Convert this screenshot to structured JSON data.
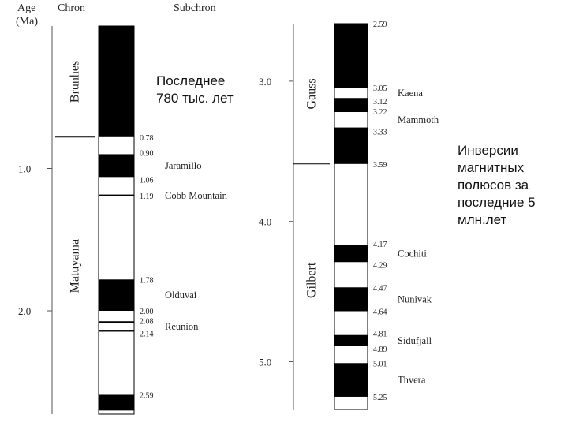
{
  "headers": {
    "age": "Age",
    "age_unit": "(Ma)",
    "chron": "Chron",
    "subchron": "Subchron"
  },
  "notes": {
    "last": "Последнее\n780 тыс. лет",
    "inversions": "Инверсии\nмагнитных\nполюсов за\nпоследние 5\nмлн.лет"
  },
  "chart_data": [
    {
      "type": "table",
      "age_axis": {
        "ticks": [
          1.0,
          2.0
        ],
        "tick_labels": [
          "1.0",
          "2.0"
        ],
        "range": [
          0.0,
          2.59
        ]
      },
      "chrons": [
        {
          "name": "Brunhes",
          "from": 0.0,
          "to": 0.78
        },
        {
          "name": "Matuyama",
          "from": 0.78,
          "to": 2.59
        }
      ],
      "normal_intervals": [
        [
          0.0,
          0.78
        ],
        [
          0.9,
          1.06
        ],
        [
          1.78,
          2.0
        ],
        [
          2.59,
          2.7
        ]
      ],
      "thin_events": [
        1.19,
        2.08,
        2.14
      ],
      "age_labels": [
        "0.78",
        "0.90",
        "1.06",
        "1.19",
        "1.78",
        "2.00",
        "2.08",
        "2.14",
        "2.59"
      ],
      "age_label_values": [
        0.78,
        0.9,
        1.06,
        1.19,
        1.78,
        2.0,
        2.08,
        2.14,
        2.59
      ],
      "subchrons": [
        {
          "name": "Jaramillo",
          "at": 0.98
        },
        {
          "name": "Cobb Mountain",
          "at": 1.19
        },
        {
          "name": "Olduvai",
          "at": 1.89
        },
        {
          "name": "Reunion",
          "at": 2.11
        }
      ]
    },
    {
      "type": "table",
      "age_axis": {
        "ticks": [
          3.0,
          4.0,
          5.0
        ],
        "tick_labels": [
          "3.0",
          "4.0",
          "5.0"
        ],
        "range": [
          2.59,
          5.25
        ]
      },
      "chrons": [
        {
          "name": "Gauss",
          "from": 2.59,
          "to": 3.59
        },
        {
          "name": "Gilbert",
          "from": 3.59,
          "to": 5.25
        }
      ],
      "normal_intervals": [
        [
          2.59,
          3.05
        ],
        [
          3.12,
          3.22
        ],
        [
          3.33,
          3.59
        ],
        [
          4.17,
          4.29
        ],
        [
          4.47,
          4.64
        ],
        [
          4.81,
          4.89
        ],
        [
          5.01,
          5.25
        ]
      ],
      "thin_events": [],
      "age_labels": [
        "2.59",
        "3.05",
        "3.12",
        "3.22",
        "3.33",
        "3.59",
        "4.17",
        "4.29",
        "4.47",
        "4.64",
        "4.81",
        "4.89",
        "5.01",
        "5.25"
      ],
      "age_label_values": [
        2.59,
        3.05,
        3.12,
        3.22,
        3.33,
        3.59,
        4.17,
        4.29,
        4.47,
        4.64,
        4.81,
        4.89,
        5.01,
        5.25
      ],
      "subchrons": [
        {
          "name": "Kaena",
          "at": 3.085
        },
        {
          "name": "Mammoth",
          "at": 3.275
        },
        {
          "name": "Cochiti",
          "at": 4.23
        },
        {
          "name": "Nunivak",
          "at": 4.555
        },
        {
          "name": "Sidufjall",
          "at": 4.85
        },
        {
          "name": "Thvera",
          "at": 5.13
        }
      ]
    }
  ]
}
